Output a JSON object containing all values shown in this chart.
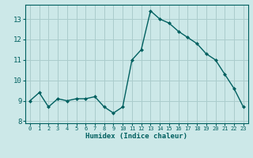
{
  "x": [
    0,
    1,
    2,
    3,
    4,
    5,
    6,
    7,
    8,
    9,
    10,
    11,
    12,
    13,
    14,
    15,
    16,
    17,
    18,
    19,
    20,
    21,
    22,
    23
  ],
  "y": [
    9.0,
    9.4,
    8.7,
    9.1,
    9.0,
    9.1,
    9.1,
    9.2,
    8.7,
    8.4,
    8.7,
    11.0,
    11.5,
    13.4,
    13.0,
    12.8,
    12.4,
    12.1,
    11.8,
    11.3,
    11.0,
    10.3,
    9.6,
    8.7
  ],
  "bg_color": "#cce8e8",
  "grid_color": "#aacccc",
  "line_color": "#006060",
  "marker_color": "#006060",
  "xlabel": "Humidex (Indice chaleur)",
  "ylabel": "",
  "ylim": [
    7.9,
    13.7
  ],
  "yticks": [
    8,
    9,
    10,
    11,
    12,
    13
  ],
  "xlim": [
    -0.5,
    23.5
  ],
  "xticks": [
    0,
    1,
    2,
    3,
    4,
    5,
    6,
    7,
    8,
    9,
    10,
    11,
    12,
    13,
    14,
    15,
    16,
    17,
    18,
    19,
    20,
    21,
    22,
    23
  ]
}
